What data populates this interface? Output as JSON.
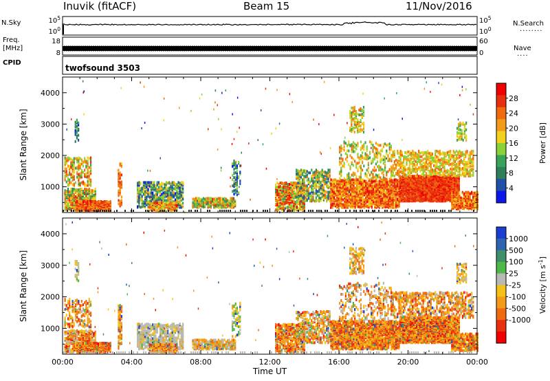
{
  "header": {
    "station": "Inuvik (fitACF)",
    "beam": "Beam 15",
    "date": "11/Nov/2016"
  },
  "params": {
    "nsky_label": "N.Sky",
    "nsearch_label": "N.Search",
    "freq_label": "Freq.",
    "freq_unit": "[MHz]",
    "nave_label": "Nave",
    "cpid_label": "CPID",
    "cpid_value": "twofsound 3503",
    "nsky_ticks": [
      "10^5",
      "10^0"
    ],
    "nsearch_ticks": [
      "10^5",
      "10^0"
    ],
    "freq_ticks": [
      "18",
      "8"
    ],
    "nave_ticks": [
      "60",
      "0"
    ]
  },
  "chart_data": [
    {
      "type": "heatmap",
      "name": "power",
      "ylabel": "Slant Range [km]",
      "ylim": [
        180,
        4500
      ],
      "yticks": [
        1000,
        2000,
        3000,
        4000
      ],
      "xlim": [
        0,
        24
      ],
      "xticks": [
        "00:00",
        "04:00",
        "08:00",
        "12:00",
        "16:00",
        "20:00",
        "00:00"
      ],
      "colorbar": {
        "label": "Power [dB]",
        "ticks": [
          "4",
          "8",
          "12",
          "16",
          "20",
          "24",
          "28"
        ],
        "colors": [
          "#0a17e8",
          "#2050a8",
          "#2f7f5a",
          "#3aa35a",
          "#8bd13a",
          "#f0d21c",
          "#f39a18",
          "#f06a10",
          "#e83010",
          "#f00000"
        ]
      }
    },
    {
      "type": "heatmap",
      "name": "velocity",
      "ylabel": "Slant Range [km]",
      "ylim": [
        180,
        4500
      ],
      "yticks": [
        1000,
        2000,
        3000,
        4000
      ],
      "xlim": [
        0,
        24
      ],
      "xticks": [
        "00:00",
        "04:00",
        "08:00",
        "12:00",
        "16:00",
        "20:00",
        "00:00"
      ],
      "xlabel": "Time UT",
      "colorbar": {
        "label": "Velocity [m s^-1]",
        "ticks": [
          "1000",
          "500",
          "100",
          "25",
          "-25",
          "-100",
          "-500",
          "-1000"
        ],
        "colors": [
          "#1a3fd0",
          "#2e63b0",
          "#3f8f6a",
          "#4fb84a",
          "#b9b9b3",
          "#f5c018",
          "#f39a18",
          "#f06a10",
          "#e83010",
          "#f00000"
        ]
      }
    }
  ]
}
